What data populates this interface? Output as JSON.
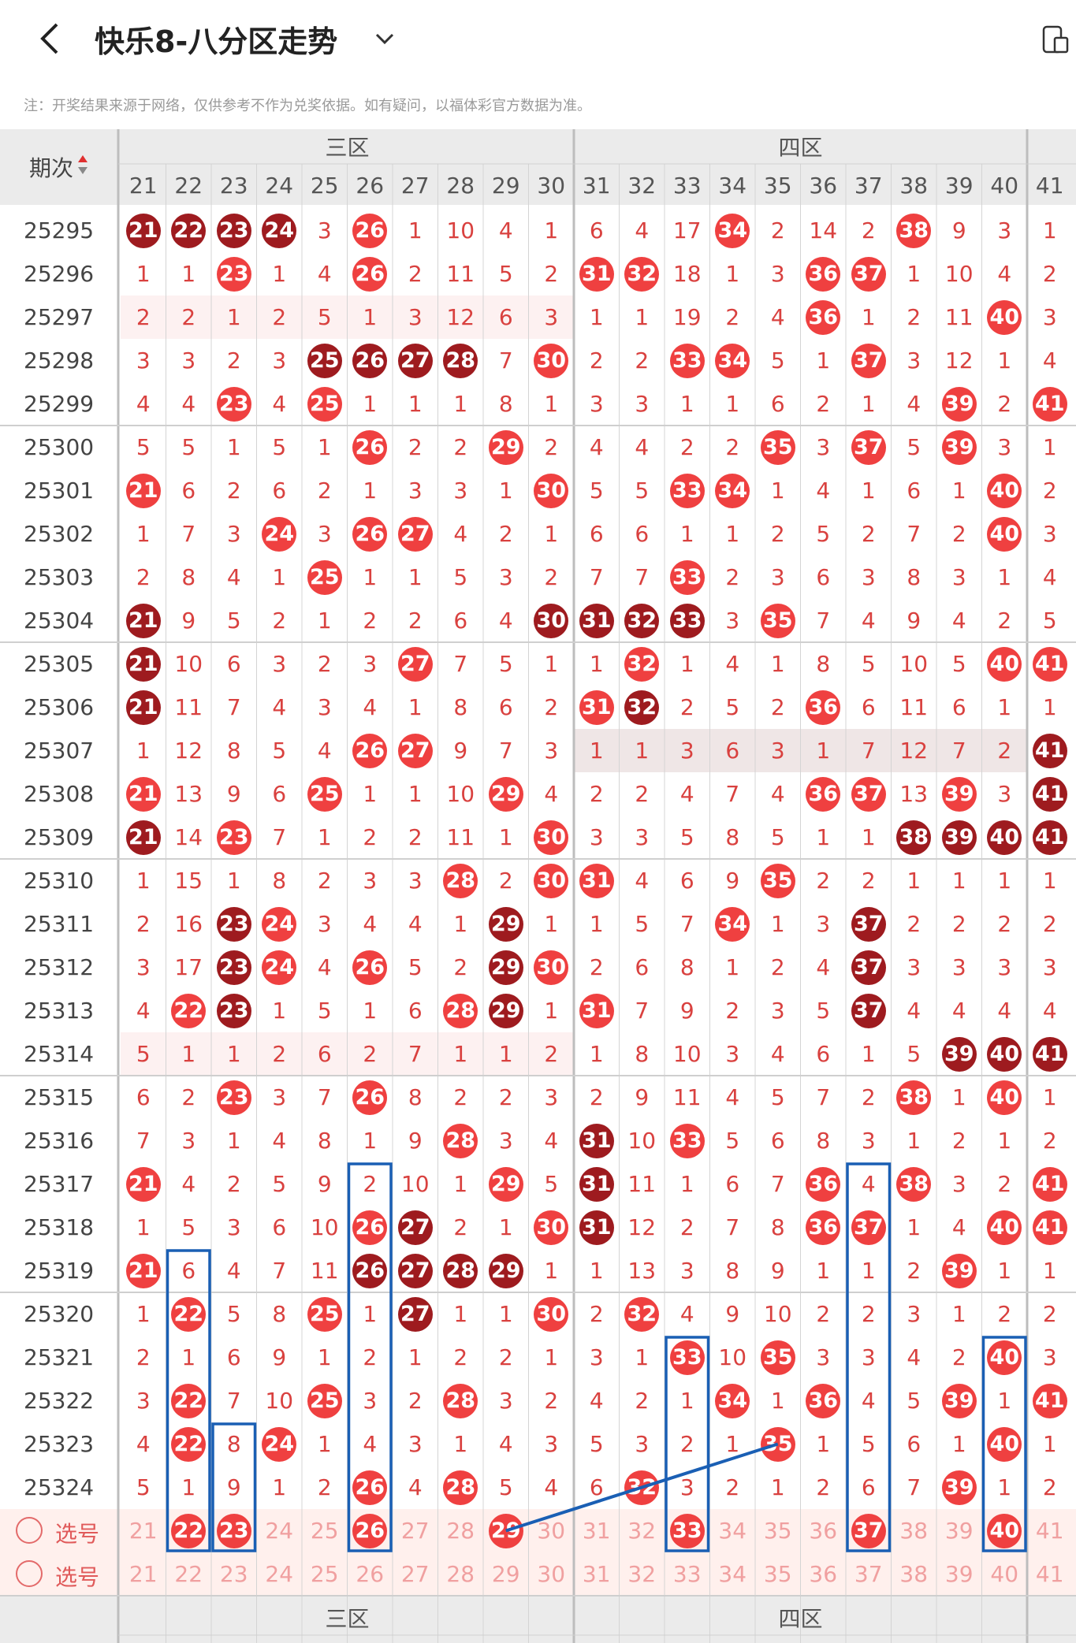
{
  "header": {
    "title": "快乐8-八分区走势"
  },
  "note": "注：开奖结果来源于网络，仅供参考不作为兑奖依据。如有疑问，以福体彩官方数据为准。",
  "table": {
    "period_header": "期次",
    "zones": [
      {
        "label": "三区",
        "from": 21,
        "to": 30
      },
      {
        "label": "四区",
        "from": 31,
        "to": 40
      }
    ],
    "columns": [
      21,
      22,
      23,
      24,
      25,
      26,
      27,
      28,
      29,
      30,
      31,
      32,
      33,
      34,
      35,
      36,
      37,
      38,
      39,
      40,
      41
    ],
    "rows": [
      {
        "period": "25295",
        "v": [
          21,
          22,
          23,
          24,
          3,
          26,
          1,
          10,
          4,
          1,
          6,
          4,
          17,
          34,
          2,
          14,
          2,
          38,
          9,
          3,
          1
        ],
        "dark": [
          21,
          22,
          23,
          24
        ]
      },
      {
        "period": "25296",
        "v": [
          1,
          1,
          23,
          1,
          4,
          26,
          2,
          11,
          5,
          2,
          31,
          32,
          18,
          1,
          3,
          36,
          37,
          1,
          10,
          4,
          2
        ],
        "dark": []
      },
      {
        "period": "25297",
        "v": [
          2,
          2,
          1,
          2,
          5,
          1,
          3,
          12,
          6,
          3,
          1,
          1,
          19,
          2,
          4,
          36,
          1,
          2,
          11,
          40,
          3
        ],
        "dark": []
      },
      {
        "period": "25298",
        "v": [
          3,
          3,
          2,
          3,
          25,
          26,
          27,
          28,
          7,
          30,
          2,
          2,
          33,
          34,
          5,
          1,
          37,
          3,
          12,
          1,
          4
        ],
        "dark": [
          25,
          26,
          27,
          28
        ]
      },
      {
        "period": "25299",
        "v": [
          4,
          4,
          23,
          4,
          25,
          1,
          1,
          1,
          8,
          1,
          3,
          3,
          1,
          1,
          6,
          2,
          1,
          4,
          39,
          2,
          41
        ],
        "dark": []
      },
      {
        "period": "25300",
        "v": [
          5,
          5,
          1,
          5,
          1,
          26,
          2,
          2,
          29,
          2,
          4,
          4,
          2,
          2,
          35,
          3,
          37,
          5,
          39,
          3,
          1
        ],
        "dark": []
      },
      {
        "period": "25301",
        "v": [
          21,
          6,
          2,
          6,
          2,
          1,
          3,
          3,
          1,
          30,
          5,
          5,
          33,
          34,
          1,
          4,
          1,
          6,
          1,
          40,
          2
        ],
        "dark": []
      },
      {
        "period": "25302",
        "v": [
          1,
          7,
          3,
          24,
          3,
          26,
          27,
          4,
          2,
          1,
          6,
          6,
          1,
          1,
          2,
          5,
          2,
          7,
          2,
          40,
          3
        ],
        "dark": []
      },
      {
        "period": "25303",
        "v": [
          2,
          8,
          4,
          1,
          25,
          1,
          1,
          5,
          3,
          2,
          7,
          7,
          33,
          2,
          3,
          6,
          3,
          8,
          3,
          1,
          4
        ],
        "dark": []
      },
      {
        "period": "25304",
        "v": [
          21,
          9,
          5,
          2,
          1,
          2,
          2,
          6,
          4,
          30,
          31,
          32,
          33,
          3,
          35,
          7,
          4,
          9,
          4,
          2,
          5
        ],
        "dark": [
          21,
          30,
          31,
          32,
          33
        ]
      },
      {
        "period": "25305",
        "v": [
          21,
          10,
          6,
          3,
          2,
          3,
          27,
          7,
          5,
          1,
          1,
          32,
          1,
          4,
          1,
          8,
          5,
          10,
          5,
          40,
          41
        ],
        "dark": [
          21
        ]
      },
      {
        "period": "25306",
        "v": [
          21,
          11,
          7,
          4,
          3,
          4,
          1,
          8,
          6,
          2,
          31,
          32,
          2,
          5,
          2,
          36,
          6,
          11,
          6,
          1,
          1
        ],
        "dark": [
          21,
          32
        ]
      },
      {
        "period": "25307",
        "v": [
          1,
          12,
          8,
          5,
          4,
          26,
          27,
          9,
          7,
          3,
          1,
          1,
          3,
          6,
          3,
          1,
          7,
          12,
          7,
          2,
          41
        ],
        "dark": [
          41
        ]
      },
      {
        "period": "25308",
        "v": [
          21,
          13,
          9,
          6,
          25,
          1,
          1,
          10,
          29,
          4,
          2,
          2,
          4,
          7,
          4,
          36,
          37,
          13,
          39,
          3,
          41
        ],
        "dark": [
          41
        ]
      },
      {
        "period": "25309",
        "v": [
          21,
          14,
          23,
          7,
          1,
          2,
          2,
          11,
          1,
          30,
          3,
          3,
          5,
          8,
          5,
          1,
          1,
          38,
          39,
          40,
          41
        ],
        "dark": [
          21,
          38,
          39,
          40,
          41
        ]
      },
      {
        "period": "25310",
        "v": [
          1,
          15,
          1,
          8,
          2,
          3,
          3,
          28,
          2,
          30,
          31,
          4,
          6,
          9,
          35,
          2,
          2,
          1,
          1,
          1,
          1
        ],
        "dark": []
      },
      {
        "period": "25311",
        "v": [
          2,
          16,
          23,
          24,
          3,
          4,
          4,
          1,
          29,
          1,
          1,
          5,
          7,
          34,
          1,
          3,
          37,
          2,
          2,
          2,
          2
        ],
        "dark": [
          23,
          29,
          37
        ]
      },
      {
        "period": "25312",
        "v": [
          3,
          17,
          23,
          24,
          4,
          26,
          5,
          2,
          29,
          30,
          2,
          6,
          8,
          1,
          2,
          4,
          37,
          3,
          3,
          3,
          3
        ],
        "dark": [
          23,
          29,
          37
        ]
      },
      {
        "period": "25313",
        "v": [
          4,
          22,
          23,
          1,
          5,
          1,
          6,
          28,
          29,
          1,
          31,
          7,
          9,
          2,
          3,
          5,
          37,
          4,
          4,
          4,
          4
        ],
        "dark": [
          23,
          29,
          37
        ]
      },
      {
        "period": "25314",
        "v": [
          5,
          1,
          1,
          2,
          6,
          2,
          7,
          1,
          1,
          2,
          1,
          8,
          10,
          3,
          4,
          6,
          1,
          5,
          39,
          40,
          41
        ],
        "dark": [
          39,
          40,
          41
        ]
      },
      {
        "period": "25315",
        "v": [
          6,
          2,
          23,
          3,
          7,
          26,
          8,
          2,
          2,
          3,
          2,
          9,
          11,
          4,
          5,
          7,
          2,
          38,
          1,
          40,
          1
        ],
        "dark": []
      },
      {
        "period": "25316",
        "v": [
          7,
          3,
          1,
          4,
          8,
          1,
          9,
          28,
          3,
          4,
          31,
          10,
          33,
          5,
          6,
          8,
          3,
          1,
          2,
          1,
          2
        ],
        "dark": [
          31
        ]
      },
      {
        "period": "25317",
        "v": [
          21,
          4,
          2,
          5,
          9,
          2,
          10,
          1,
          29,
          5,
          31,
          11,
          1,
          6,
          7,
          36,
          4,
          38,
          3,
          2,
          41
        ],
        "dark": [
          31
        ]
      },
      {
        "period": "25318",
        "v": [
          1,
          5,
          3,
          6,
          10,
          26,
          27,
          2,
          1,
          30,
          31,
          12,
          2,
          7,
          8,
          36,
          37,
          1,
          4,
          40,
          41
        ],
        "dark": [
          27,
          31
        ]
      },
      {
        "period": "25319",
        "v": [
          21,
          6,
          4,
          7,
          11,
          26,
          27,
          28,
          29,
          1,
          1,
          13,
          3,
          8,
          9,
          1,
          1,
          2,
          39,
          1,
          1
        ],
        "dark": [
          26,
          27,
          28,
          29
        ]
      },
      {
        "period": "25320",
        "v": [
          1,
          22,
          5,
          8,
          25,
          1,
          27,
          1,
          1,
          30,
          2,
          32,
          4,
          9,
          10,
          2,
          2,
          3,
          1,
          2,
          2
        ],
        "dark": [
          27
        ]
      },
      {
        "period": "25321",
        "v": [
          2,
          1,
          6,
          9,
          1,
          2,
          1,
          2,
          2,
          1,
          3,
          1,
          33,
          10,
          35,
          3,
          3,
          4,
          2,
          40,
          3
        ],
        "dark": []
      },
      {
        "period": "25322",
        "v": [
          3,
          22,
          7,
          10,
          25,
          3,
          2,
          28,
          3,
          2,
          4,
          2,
          1,
          34,
          1,
          36,
          4,
          5,
          39,
          1,
          41
        ],
        "dark": []
      },
      {
        "period": "25323",
        "v": [
          4,
          22,
          8,
          24,
          1,
          4,
          3,
          1,
          4,
          3,
          5,
          3,
          2,
          1,
          35,
          1,
          5,
          6,
          1,
          40,
          1
        ],
        "dark": []
      },
      {
        "period": "25324",
        "v": [
          5,
          1,
          9,
          1,
          2,
          26,
          4,
          28,
          5,
          4,
          6,
          32,
          3,
          2,
          1,
          2,
          6,
          7,
          39,
          1,
          2
        ],
        "dark": []
      }
    ],
    "select_rows": [
      {
        "label": "选号",
        "selected": [
          22,
          23,
          26,
          29,
          33,
          37,
          40
        ]
      },
      {
        "label": "选号",
        "selected": []
      }
    ],
    "footer": {
      "left": "-",
      "zones": [
        "三区",
        "四区"
      ]
    }
  },
  "colors": {
    "ball": "#ef4040",
    "ball_dark": "#9e1b1f",
    "text": "#d9413f",
    "box": "#1a5fb4",
    "header_bg": "#ebebeb"
  }
}
